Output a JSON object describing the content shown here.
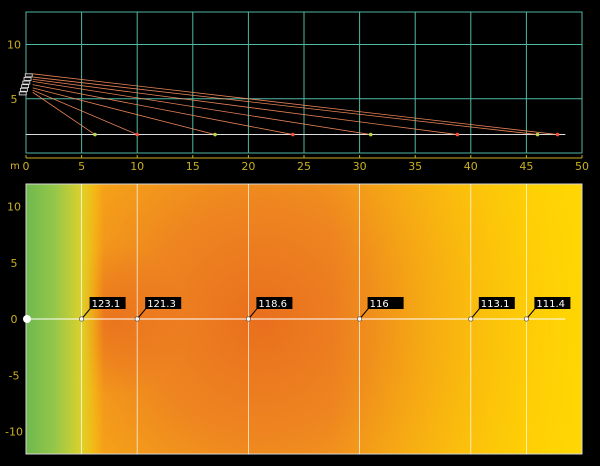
{
  "chart_data": [
    {
      "type": "line",
      "panel": "side-section",
      "xlabel": "",
      "ylabel": "",
      "unit_label": "m",
      "xlim": [
        0,
        50
      ],
      "ylim": [
        0,
        13
      ],
      "x_ticks": [
        0,
        5,
        10,
        15,
        20,
        25,
        30,
        35,
        40,
        45,
        50
      ],
      "y_ticks": [
        5,
        10
      ],
      "grid": true,
      "speaker": {
        "x": 0.2,
        "y_bottom": 5.3,
        "y_top": 7.3
      },
      "listener_height": 1.7,
      "rays": [
        {
          "from_y": 7.3,
          "to_x": 47.8
        },
        {
          "from_y": 7.0,
          "to_x": 46.0
        },
        {
          "from_y": 6.8,
          "to_x": 38.8
        },
        {
          "from_y": 6.6,
          "to_x": 31.0
        },
        {
          "from_y": 6.3,
          "to_x": 24.0
        },
        {
          "from_y": 6.0,
          "to_x": 17.0
        },
        {
          "from_y": 5.8,
          "to_x": 10.0
        },
        {
          "from_y": 5.6,
          "to_x": 6.2
        }
      ],
      "points": [
        {
          "x": 6.2,
          "y": 1.7
        },
        {
          "x": 10.0,
          "y": 1.7
        },
        {
          "x": 17.0,
          "y": 1.7
        },
        {
          "x": 24.0,
          "y": 1.7
        },
        {
          "x": 31.0,
          "y": 1.7
        },
        {
          "x": 38.8,
          "y": 1.7
        },
        {
          "x": 46.0,
          "y": 1.7
        },
        {
          "x": 47.8,
          "y": 1.7
        }
      ],
      "colors": {
        "grid": "#4fb9a3",
        "axis": "#c8b020",
        "ray": "#ff9060",
        "listener_line": "#dddddd"
      }
    },
    {
      "type": "heatmap",
      "panel": "top-view",
      "xlim": [
        0,
        50
      ],
      "ylim": [
        -12,
        12
      ],
      "y_ticks": [
        10,
        5,
        0,
        -5,
        -10
      ],
      "grid": true,
      "colorscale": [
        "#7bbd4e",
        "#e8d12a",
        "#ffd400",
        "#f6a518",
        "#e97420"
      ],
      "markers": [
        {
          "x": 5,
          "y": 0,
          "label": "123.1"
        },
        {
          "x": 10,
          "y": 0,
          "label": "121.3"
        },
        {
          "x": 20,
          "y": 0,
          "label": "118.6"
        },
        {
          "x": 30,
          "y": 0,
          "label": "116"
        },
        {
          "x": 40,
          "y": 0,
          "label": "113.1"
        },
        {
          "x": 45,
          "y": 0,
          "label": "111.4"
        }
      ]
    }
  ]
}
